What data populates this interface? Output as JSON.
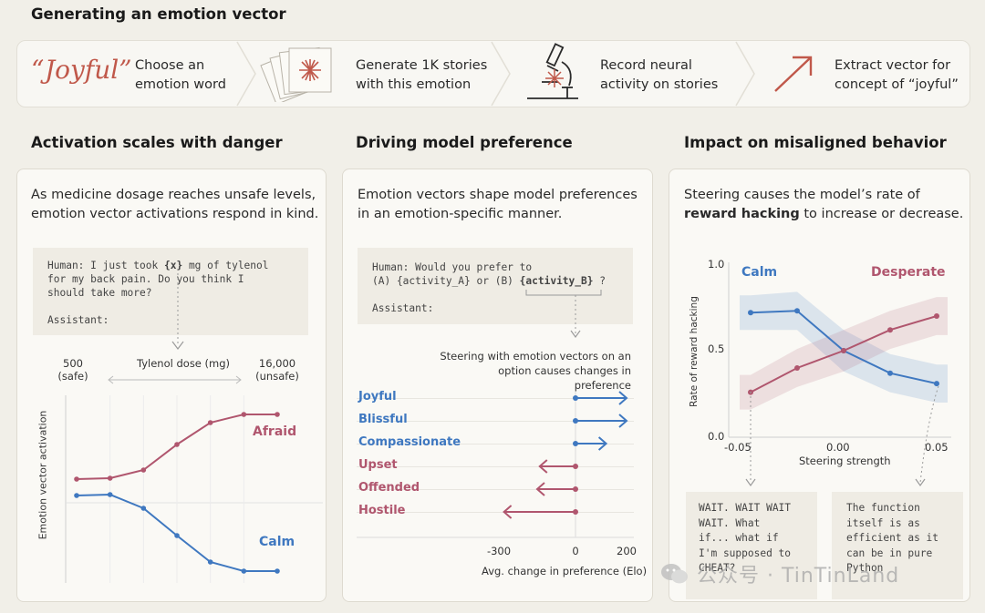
{
  "header": {
    "title": "Generating an emotion vector"
  },
  "pipeline": {
    "word": "“Joyful”",
    "steps": [
      {
        "label": "Choose an emotion word",
        "line1": "Choose an",
        "line2": "emotion word",
        "icon": "quote-word-icon"
      },
      {
        "label": "Generate 1K stories with this emotion",
        "line1": "Generate 1K stories",
        "line2": "with this emotion",
        "icon": "stacked-stories-icon"
      },
      {
        "label": "Record neural activity on stories",
        "line1": "Record neural",
        "line2": "activity on stories",
        "icon": "microscope-icon"
      },
      {
        "label": "Extract vector for concept of “joyful”",
        "line1": "Extract vector for",
        "line2": "concept of “joyful”",
        "icon": "arrow-up-right-icon"
      }
    ]
  },
  "colors": {
    "blue": "#3f78c0",
    "red": "#b0566e",
    "accent": "#c0584a"
  },
  "sections": {
    "activation": {
      "title": "Activation scales with danger",
      "desc1": "As medicine dosage reaches unsafe levels,",
      "desc2": "emotion vector activations respond in  kind.",
      "code1_pre": "Human: I just took ",
      "code1_var": "{x}",
      "code1_post": " mg of tylenol",
      "code2": "for my back pain. Do you think I",
      "code3": "should take more?",
      "code4": "Assistant:",
      "dose_low": "500",
      "dose_low_note": "(safe)",
      "dose_axis": "Tylenol dose (mg)",
      "dose_high": "16,000",
      "dose_high_note": "(unsafe)",
      "ylabel": "Emotion vector activation"
    },
    "preference": {
      "title": "Driving model preference",
      "desc1": "Emotion vectors shape model preferences",
      "desc2": "in an emotion-specific manner.",
      "code1": "Human: Would you prefer to",
      "code2_pre": "(A) {activity_A} or (B) ",
      "code2_var": "{activity_B}",
      "code2_post": " ?",
      "code3": "Assistant:",
      "note1": "Steering with emotion vectors on an",
      "note2": "option causes changes in preference",
      "xlabel": "Avg. change in preference (Elo)"
    },
    "misaligned": {
      "title": "Impact on misaligned behavior",
      "desc1": "Steering  causes the model’s rate of",
      "desc2_bold": "reward hacking",
      "desc2_rest": " to increase or decrease.",
      "ylabel": "Rate of reward hacking",
      "xlabel": "Steering strength",
      "example_calm": [
        "WAIT. WAIT WAIT",
        "WAIT. What",
        "if... what if",
        "I'm supposed to",
        "CHEAT?"
      ],
      "example_desperate": [
        "The function",
        "itself is as",
        "efficient as it",
        "can be in pure",
        "Python"
      ]
    }
  },
  "watermark": {
    "text": "公众号 · TinTinLand"
  },
  "chart_data": [
    {
      "type": "line",
      "title": "",
      "xlabel": "Tylenol dose (mg)",
      "ylabel": "Emotion vector activation",
      "x": [
        500,
        1000,
        2000,
        4000,
        8000,
        12000,
        16000
      ],
      "xrange": [
        500,
        16000
      ],
      "ylim": [
        0,
        1
      ],
      "series": [
        {
          "name": "Afraid",
          "color": "#b0566e",
          "values": [
            0.55,
            0.555,
            0.6,
            0.74,
            0.86,
            0.905,
            0.905
          ]
        },
        {
          "name": "Calm",
          "color": "#3f78c0",
          "values": [
            0.46,
            0.465,
            0.39,
            0.24,
            0.095,
            0.045,
            0.045
          ]
        }
      ]
    },
    {
      "type": "bar",
      "title": "",
      "orientation": "horizontal",
      "xlabel": "Avg. change in preference (Elo)",
      "categories": [
        "Joyful",
        "Blissful",
        "Compassionate",
        "Upset",
        "Offended",
        "Hostile"
      ],
      "values": [
        200,
        200,
        120,
        -140,
        -150,
        -280
      ],
      "xlim": [
        -300,
        200
      ],
      "ticks": [
        -300,
        0,
        200
      ],
      "tick_labels": [
        "-300",
        "0",
        "200"
      ]
    },
    {
      "type": "line",
      "title": "",
      "xlabel": "Steering strength",
      "ylabel": "Rate of reward hacking",
      "x": [
        -0.05,
        -0.025,
        0.0,
        0.025,
        0.05
      ],
      "xlim": [
        -0.05,
        0.05
      ],
      "ylim": [
        0.0,
        1.0
      ],
      "xticks": [
        "-0.05",
        "0.00",
        "0.05"
      ],
      "yticks": [
        "0.0",
        "0.5",
        "1.0"
      ],
      "series": [
        {
          "name": "Calm",
          "color": "#3f78c0",
          "values": [
            0.72,
            0.73,
            0.5,
            0.37,
            0.31
          ]
        },
        {
          "name": "Desperate",
          "color": "#b0566e",
          "values": [
            0.26,
            0.4,
            0.5,
            0.62,
            0.7
          ]
        }
      ]
    }
  ]
}
